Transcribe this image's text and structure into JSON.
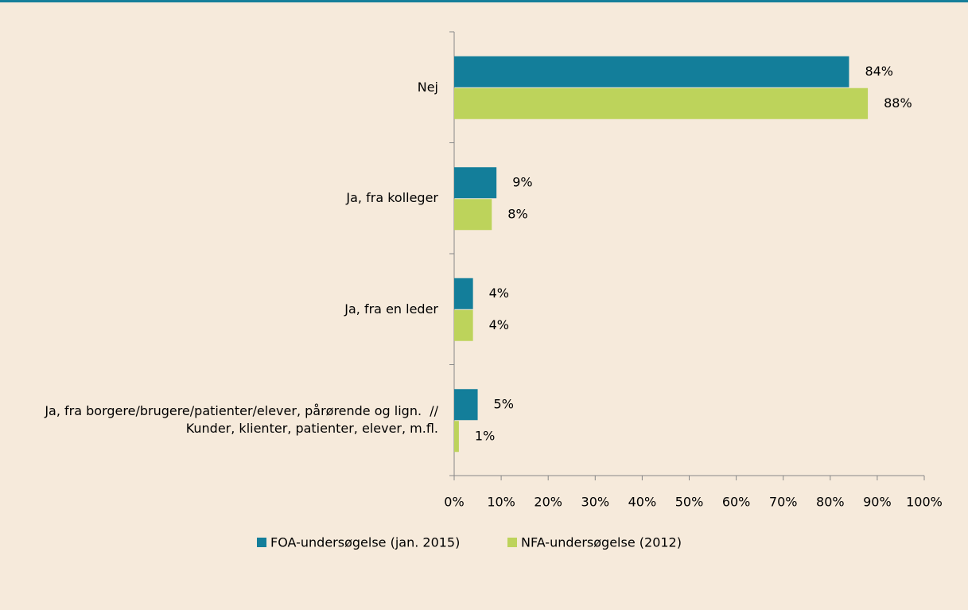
{
  "chart_data": {
    "type": "bar",
    "orientation": "horizontal",
    "categories": [
      "Nej",
      "Ja, fra kolleger",
      "Ja, fra en leder",
      "Ja, fra borgere/brugere/patienter/elever, pårørende og lign.  // Kunder, klienter, patienter, elever, m.fl."
    ],
    "series": [
      {
        "name": "FOA-undersøgelse (jan. 2015)",
        "color": "#137e9a",
        "values": [
          84,
          9,
          4,
          5
        ],
        "value_labels": [
          "84%",
          "9%",
          "4%",
          "5%"
        ]
      },
      {
        "name": "NFA-undersøgelse (2012)",
        "color": "#bdd35b",
        "values": [
          88,
          8,
          4,
          1
        ],
        "value_labels": [
          "88%",
          "8%",
          "4%",
          "1%"
        ]
      }
    ],
    "xlim": [
      0,
      100
    ],
    "xticks": [
      {
        "value": 0,
        "label": "0%"
      },
      {
        "value": 10,
        "label": "10%"
      },
      {
        "value": 20,
        "label": "20%"
      },
      {
        "value": 30,
        "label": "30%"
      },
      {
        "value": 40,
        "label": "40%"
      },
      {
        "value": 50,
        "label": "50%"
      },
      {
        "value": 60,
        "label": "60%"
      },
      {
        "value": 70,
        "label": "70%"
      },
      {
        "value": 80,
        "label": "80%"
      },
      {
        "value": 90,
        "label": "90%"
      },
      {
        "value": 100,
        "label": "100%"
      }
    ],
    "legend": "bottom"
  }
}
